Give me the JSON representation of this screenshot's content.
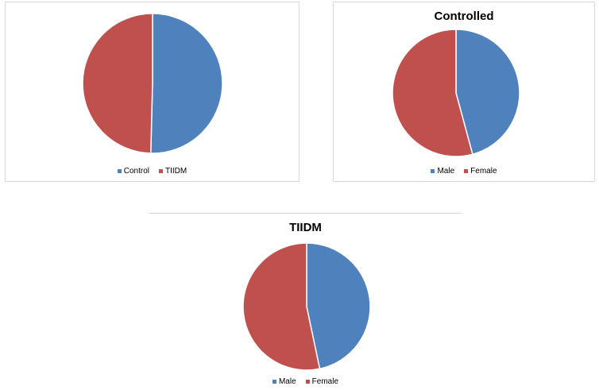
{
  "colors": {
    "blue": "#4f81bd",
    "red": "#c0504d"
  },
  "chart_data": [
    {
      "type": "pie",
      "title": "",
      "categories": [
        "Control",
        "TIIDM"
      ],
      "values": [
        50.4,
        49.6
      ],
      "legend": "bottom"
    },
    {
      "type": "pie",
      "title": "Controlled",
      "categories": [
        "Male",
        "Female"
      ],
      "values": [
        45.8,
        54.2
      ],
      "legend": "bottom"
    },
    {
      "type": "pie",
      "title": "TIIDM",
      "categories": [
        "Male",
        "Female"
      ],
      "values": [
        46.7,
        53.3
      ],
      "legend": "bottom"
    }
  ]
}
